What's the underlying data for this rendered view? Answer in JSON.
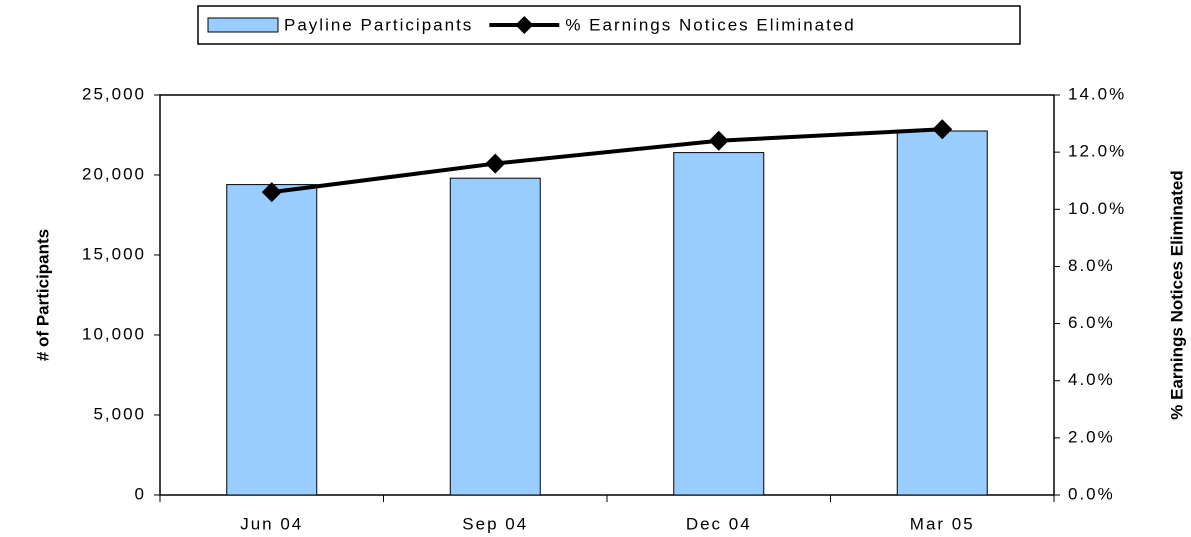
{
  "chart_data": {
    "type": "bar_line",
    "categories": [
      "Jun 04",
      "Sep 04",
      "Dec 04",
      "Mar 05"
    ],
    "series": [
      {
        "name": "Payline Participants",
        "type": "bar",
        "color": "#99ccff",
        "values": [
          19400,
          19800,
          21400,
          22750
        ]
      },
      {
        "name": "% Earnings Notices Eliminated",
        "type": "line",
        "axis": "y2",
        "color": "#000000",
        "values": [
          10.6,
          11.6,
          12.4,
          12.8
        ]
      }
    ],
    "ylabel": "# of Participants",
    "y2label": "% Earnings Notices Eliminated",
    "ylim": [
      0,
      25000
    ],
    "yticks": [
      0,
      {
        "value": 5000,
        "label": "5,000"
      },
      {
        "value": 10000,
        "label": "10,000"
      },
      {
        "value": 15000,
        "label": "15,000"
      },
      {
        "value": 20000,
        "label": "20,000"
      },
      {
        "value": 25000,
        "label": "25,000"
      }
    ],
    "y2lim": [
      0,
      14
    ],
    "y2ticks": [
      {
        "value": 0,
        "label": "0.0%"
      },
      {
        "value": 2,
        "label": "2.0%"
      },
      {
        "value": 4,
        "label": "4.0%"
      },
      {
        "value": 6,
        "label": "6.0%"
      },
      {
        "value": 8,
        "label": "8.0%"
      },
      {
        "value": 10,
        "label": "10.0%"
      },
      {
        "value": 12,
        "label": "12.0%"
      },
      {
        "value": 14,
        "label": "14.0%"
      }
    ],
    "legend": "top"
  }
}
